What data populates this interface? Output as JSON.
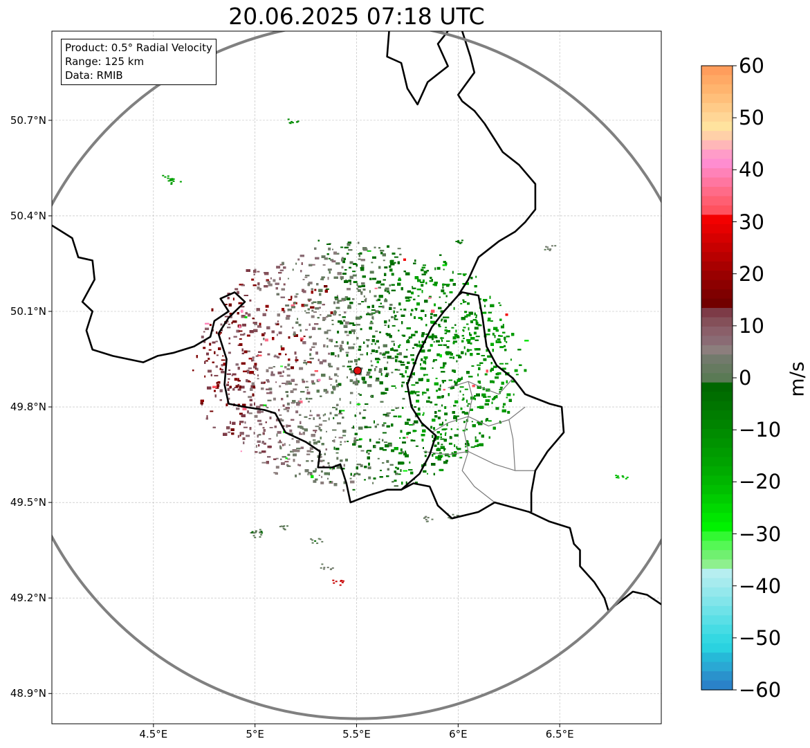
{
  "title": "20.06.2025 07:18 UTC",
  "info": {
    "product": "Product: 0.5° Radial Velocity",
    "range": "Range: 125 km",
    "source": "Data: RMIB"
  },
  "map": {
    "lon_range": [
      4.0,
      7.0
    ],
    "lat_range": [
      48.8,
      50.98
    ],
    "x_ticks": [
      "4.5°E",
      "5°E",
      "5.5°E",
      "6°E",
      "6.5°E"
    ],
    "y_ticks": [
      "50.7°N",
      "50.4°N",
      "50.1°N",
      "49.8°N",
      "49.5°N",
      "49.2°N",
      "48.9°N"
    ],
    "radar_site": {
      "lon": 5.505,
      "lat": 49.914
    },
    "range_ring_km": 125,
    "colors": {
      "border": "#000000",
      "sub_border": "#7a7a7a",
      "range_ring": "#808080",
      "site_marker": "#e01010",
      "grid": "#b8b8b8"
    }
  },
  "colorbar": {
    "unit": "m/s",
    "min": -60,
    "max": 60,
    "tick_labels": [
      "60",
      "50",
      "40",
      "30",
      "20",
      "10",
      "0",
      "−10",
      "−20",
      "−30",
      "−40",
      "−50",
      "−60"
    ],
    "colors_top_to_bottom": [
      "#ff9d5c",
      "#ffa965",
      "#ffb46e",
      "#ffbf7a",
      "#ffcb88",
      "#ffd696",
      "#ffe39e",
      "#ffd0a8",
      "#ffb7b8",
      "#ff9cc8",
      "#ff8dd0",
      "#ff82b8",
      "#ff76a0",
      "#ff6b88",
      "#ff5f72",
      "#ff525f",
      "#f30000",
      "#e60000",
      "#d60000",
      "#c70000",
      "#b80000",
      "#a80000",
      "#990000",
      "#8c0000",
      "#7f0000",
      "#720000",
      "#7d3b47",
      "#845059",
      "#8a5f69",
      "#8a6b74",
      "#8c7e7d",
      "#727a6c",
      "#667a60",
      "#5a7a55",
      "#006700",
      "#006e00",
      "#007500",
      "#007d00",
      "#008400",
      "#008c00",
      "#009300",
      "#009b00",
      "#00a200",
      "#00ab00",
      "#00b500",
      "#00bf00",
      "#00cc00",
      "#00d900",
      "#00e600",
      "#00f200",
      "#32f832",
      "#55f855",
      "#70f070",
      "#8ef08e",
      "#b6eef0",
      "#a6ebee",
      "#94e8ec",
      "#82e5ea",
      "#6ee2e8",
      "#5adfe6",
      "#46dce4",
      "#34d8e2",
      "#2ad2e0",
      "#26b9d8",
      "#2aa8d4",
      "#2a92cc",
      "#2a82c8"
    ]
  }
}
